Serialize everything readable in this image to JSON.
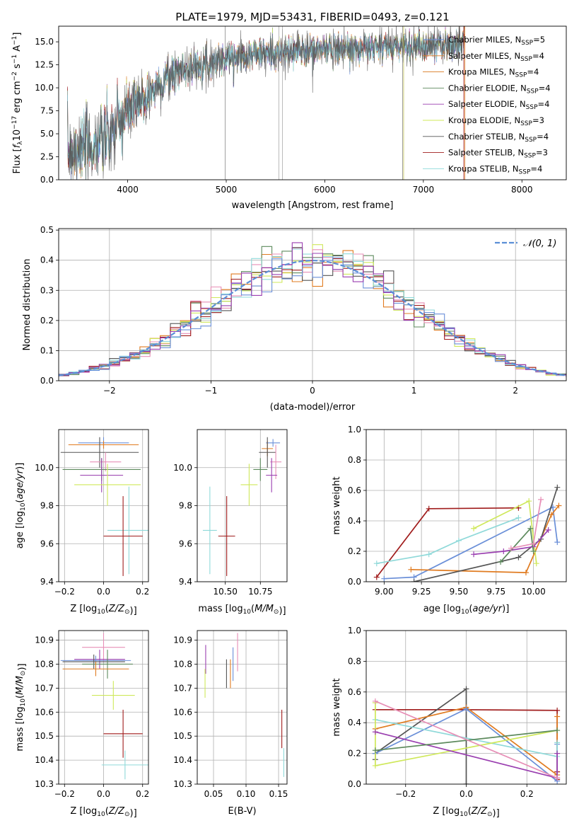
{
  "colors": {
    "chabrier_miles": "#6a8fd8",
    "salpeter_miles": "#e07b20",
    "kroupa_miles": "#d9781f",
    "chabrier_elodie": "#5d8a5d",
    "salpeter_elodie": "#9a3fb0",
    "kroupa_elodie": "#cfe85a",
    "chabrier_stelib": "#555555",
    "salpeter_stelib": "#a01c1c",
    "kroupa_stelib": "#8fd9d9",
    "pink": "#e78fb7",
    "gaussian": "#5b8fd6",
    "grid": "#b0b0b0"
  },
  "chart_data": [
    {
      "type": "line",
      "title": "PLATE=1979, MJD=53431, FIBERID=0493, z=0.121",
      "xlabel": "wavelength [Angstrom, rest frame]",
      "ylabel": "Flux [fλ10⁻¹⁷ erg cm⁻² s⁻¹ A⁻¹]",
      "xlim": [
        3300,
        8450
      ],
      "ylim": [
        0,
        16.7
      ],
      "xticks": [
        4000,
        5000,
        6000,
        7000,
        8000
      ],
      "yticks": [
        0.0,
        2.5,
        5.0,
        7.5,
        10.0,
        12.5,
        15.0
      ],
      "legend_position": "top-right",
      "series": [
        {
          "name": "Chabrier MILES, NSSP=5",
          "name_text": "Chabrier MILES, N",
          "sub": "SSP",
          "suffix": "=5"
        },
        {
          "name": "Salpeter MILES, NSSP=4",
          "name_text": "Salpeter MILES, N",
          "sub": "SSP",
          "suffix": "=4"
        },
        {
          "name": "Kroupa MILES, NSSP=4",
          "name_text": "Kroupa MILES, N",
          "sub": "SSP",
          "suffix": "=4"
        },
        {
          "name": "Chabrier ELODIE, NSSP=4",
          "name_text": "Chabrier ELODIE, N",
          "sub": "SSP",
          "suffix": "=4"
        },
        {
          "name": "Salpeter ELODIE, NSSP=4",
          "name_text": "Salpeter ELODIE, N",
          "sub": "SSP",
          "suffix": "=4"
        },
        {
          "name": "Kroupa ELODIE, NSSP=3",
          "name_text": "Kroupa ELODIE, N",
          "sub": "SSP",
          "suffix": "=3"
        },
        {
          "name": "Chabrier STELIB, NSSP=4",
          "name_text": "Chabrier STELIB, N",
          "sub": "SSP",
          "suffix": "=4"
        },
        {
          "name": "Salpeter STELIB, NSSP=3",
          "name_text": "Salpeter STELIB, N",
          "sub": "SSP",
          "suffix": "=3"
        },
        {
          "name": "Kroupa STELIB, NSSP=4",
          "name_text": "Kroupa STELIB, N",
          "sub": "SSP",
          "suffix": "=4"
        }
      ],
      "continuum": {
        "x": [
          3400,
          3500,
          3600,
          3700,
          3800,
          3900,
          4000,
          4100,
          4200,
          4300,
          4400,
          4500,
          4700,
          5000,
          5200,
          5500,
          5800,
          6000,
          6300,
          6600,
          7000,
          7300,
          7600,
          8000,
          8450
        ],
        "y": [
          3.2,
          3.4,
          3.4,
          3.9,
          4.6,
          5.8,
          7.3,
          8.2,
          9.1,
          10.2,
          11.0,
          11.8,
          12.4,
          13.2,
          13.6,
          13.8,
          14.0,
          14.2,
          14.3,
          14.4,
          14.6,
          14.7,
          14.6,
          14.5,
          14.4
        ]
      },
      "gaps": [
        4990,
        5535,
        5570,
        6800,
        7420,
        6790,
        7410
      ]
    },
    {
      "type": "line",
      "title": "",
      "xlabel": "(data-model)/error",
      "ylabel": "Normed distribution",
      "xlim": [
        -2.5,
        2.5
      ],
      "ylim": [
        0,
        0.505
      ],
      "xticks": [
        -2,
        -1,
        0,
        1,
        2
      ],
      "yticks": [
        0.0,
        0.1,
        0.2,
        0.3,
        0.4,
        0.5
      ],
      "grid": true,
      "legend_position": "top-right",
      "legend": "𝒩(0, 1)",
      "series_type": "step-histogram",
      "bin_width": 0.1
    },
    {
      "type": "scatter",
      "xlabel": "Z [log₁₀(Z/Z☉)]",
      "ylabel": "age  [log₁₀(age/yr)]",
      "xlim": [
        -0.23,
        0.23
      ],
      "ylim": [
        9.4,
        10.2
      ],
      "xticks": [
        -0.2,
        0.0,
        0.2
      ],
      "yticks": [
        9.4,
        9.6,
        9.8,
        10.0
      ],
      "grid": true,
      "errorbars": [
        {
          "series": "chabrier_miles",
          "x": 0.0,
          "y": 10.13,
          "xerr": 0.13,
          "yerr": 0.03
        },
        {
          "series": "salpeter_miles",
          "x": 0.0,
          "y": 10.12,
          "xerr": 0.18,
          "yerr": 0.02
        },
        {
          "series": "chabrier_stelib",
          "x": -0.02,
          "y": 10.08,
          "xerr": 0.2,
          "yerr": 0.08
        },
        {
          "series": "pink",
          "x": 0.01,
          "y": 10.03,
          "xerr": 0.08,
          "yerr": 0.05
        },
        {
          "series": "chabrier_elodie",
          "x": -0.01,
          "y": 9.99,
          "xerr": 0.2,
          "yerr": 0.06
        },
        {
          "series": "salpeter_elodie",
          "x": -0.01,
          "y": 9.96,
          "xerr": 0.11,
          "yerr": 0.09
        },
        {
          "series": "kroupa_elodie",
          "x": 0.02,
          "y": 9.91,
          "xerr": 0.17,
          "yerr": 0.11
        },
        {
          "series": "kroupa_stelib",
          "x": 0.13,
          "y": 9.67,
          "xerr": 0.11,
          "yerr": 0.23
        },
        {
          "series": "salpeter_stelib",
          "x": 0.1,
          "y": 9.64,
          "xerr": 0.1,
          "yerr": 0.21
        }
      ]
    },
    {
      "type": "scatter",
      "xlabel": "mass [log₁₀(M/M☉)]",
      "ylabel": "",
      "xlim": [
        10.3,
        10.94
      ],
      "ylim": [
        9.4,
        10.2
      ],
      "xticks": [
        10.5,
        10.75
      ],
      "yticks": [
        9.4,
        9.6,
        9.8,
        10.0
      ],
      "grid": true,
      "errorbars": [
        {
          "series": "chabrier_miles",
          "x": 10.84,
          "y": 10.13,
          "xerr": 0.05,
          "yerr": 0.02
        },
        {
          "series": "salpeter_miles",
          "x": 10.8,
          "y": 10.1,
          "xerr": 0.04,
          "yerr": 0.04
        },
        {
          "series": "chabrier_stelib",
          "x": 10.8,
          "y": 10.08,
          "xerr": 0.06,
          "yerr": 0.08
        },
        {
          "series": "pink",
          "x": 10.86,
          "y": 10.03,
          "xerr": 0.04,
          "yerr": 0.09
        },
        {
          "series": "chabrier_elodie",
          "x": 10.75,
          "y": 9.99,
          "xerr": 0.05,
          "yerr": 0.06
        },
        {
          "series": "salpeter_elodie",
          "x": 10.83,
          "y": 9.96,
          "xerr": 0.04,
          "yerr": 0.09
        },
        {
          "series": "kroupa_elodie",
          "x": 10.67,
          "y": 9.91,
          "xerr": 0.06,
          "yerr": 0.11
        },
        {
          "series": "kroupa_stelib",
          "x": 10.39,
          "y": 9.67,
          "xerr": 0.05,
          "yerr": 0.23
        },
        {
          "series": "salpeter_stelib",
          "x": 10.51,
          "y": 9.64,
          "xerr": 0.06,
          "yerr": 0.21
        }
      ]
    },
    {
      "type": "line",
      "xlabel": "age  [log₁₀(age/yr)]",
      "ylabel": "mass weight",
      "xlim": [
        8.88,
        10.22
      ],
      "ylim": [
        0,
        1.0
      ],
      "xticks": [
        9.0,
        9.25,
        9.5,
        9.75,
        10.0
      ],
      "yticks": [
        0.0,
        0.2,
        0.4,
        0.6,
        0.8,
        1.0
      ],
      "grid": true,
      "series": [
        {
          "series": "salpeter_stelib",
          "x": [
            8.95,
            9.3,
            9.9
          ],
          "y": [
            0.03,
            0.48,
            0.485
          ]
        },
        {
          "series": "kroupa_stelib",
          "x": [
            8.95,
            9.3,
            9.5,
            9.9
          ],
          "y": [
            0.12,
            0.18,
            0.27,
            0.42
          ]
        },
        {
          "series": "chabrier_miles",
          "x": [
            9.0,
            9.2,
            10.13,
            10.16
          ],
          "y": [
            0.02,
            0.03,
            0.49,
            0.26
          ]
        },
        {
          "series": "salpeter_miles",
          "x": [
            9.18,
            9.95,
            10.12,
            10.17
          ],
          "y": [
            0.08,
            0.06,
            0.44,
            0.5
          ]
        },
        {
          "series": "chabrier_stelib",
          "x": [
            9.2,
            9.9,
            10.05,
            10.16
          ],
          "y": [
            0.0,
            0.16,
            0.28,
            0.62
          ]
        },
        {
          "series": "kroupa_elodie",
          "x": [
            9.6,
            9.97,
            10.02
          ],
          "y": [
            0.35,
            0.53,
            0.12
          ]
        },
        {
          "series": "salpeter_elodie",
          "x": [
            9.6,
            9.8,
            10.0,
            10.1
          ],
          "y": [
            0.18,
            0.2,
            0.23,
            0.34
          ]
        },
        {
          "series": "chabrier_elodie",
          "x": [
            9.78,
            9.98,
            10.0
          ],
          "y": [
            0.13,
            0.35,
            0.2
          ]
        },
        {
          "series": "pink",
          "x": [
            9.85,
            10.0,
            10.05
          ],
          "y": [
            0.22,
            0.25,
            0.54
          ]
        }
      ]
    },
    {
      "type": "scatter",
      "xlabel": "Z [log₁₀(Z/Z☉)]",
      "ylabel": "mass [log₁₀(M/M☉)]",
      "xlim": [
        -0.23,
        0.23
      ],
      "ylim": [
        10.3,
        10.94
      ],
      "xticks": [
        -0.2,
        0.0,
        0.2
      ],
      "yticks": [
        10.3,
        10.4,
        10.5,
        10.6,
        10.7,
        10.8,
        10.9
      ],
      "grid": true,
      "errorbars": [
        {
          "series": "pink",
          "x": 0.0,
          "y": 10.87,
          "xerr": 0.11,
          "yerr": 0.06
        },
        {
          "series": "salpeter_elodie",
          "x": -0.02,
          "y": 10.82,
          "xerr": 0.13,
          "yerr": 0.04
        },
        {
          "series": "chabrier_miles",
          "x": -0.04,
          "y": 10.815,
          "xerr": 0.18,
          "yerr": 0.02
        },
        {
          "series": "chabrier_stelib",
          "x": -0.05,
          "y": 10.81,
          "xerr": 0.16,
          "yerr": 0.03
        },
        {
          "series": "chabrier_elodie",
          "x": 0.02,
          "y": 10.8,
          "xerr": 0.13,
          "yerr": 0.06
        },
        {
          "series": "salpeter_miles",
          "x": -0.04,
          "y": 10.78,
          "xerr": 0.17,
          "yerr": 0.03
        },
        {
          "series": "kroupa_elodie",
          "x": 0.05,
          "y": 10.67,
          "xerr": 0.11,
          "yerr": 0.06
        },
        {
          "series": "salpeter_stelib",
          "x": 0.1,
          "y": 10.51,
          "xerr": 0.1,
          "yerr": 0.1
        },
        {
          "series": "kroupa_stelib",
          "x": 0.11,
          "y": 10.38,
          "xerr": 0.12,
          "yerr": 0.06
        }
      ]
    },
    {
      "type": "scatter",
      "xlabel": "E(B-V)",
      "ylabel": "",
      "xlim": [
        0.025,
        0.163
      ],
      "ylim": [
        10.3,
        10.94
      ],
      "xticks": [
        0.05,
        0.1,
        0.15
      ],
      "yticks": [
        10.3,
        10.4,
        10.5,
        10.6,
        10.7,
        10.8,
        10.9
      ],
      "grid": true,
      "errorbars": [
        {
          "series": "salpeter_elodie",
          "x": 0.038,
          "y": 10.82,
          "xerr": 0.0,
          "yerr": 0.06
        },
        {
          "series": "kroupa_elodie",
          "x": 0.037,
          "y": 10.72,
          "xerr": 0.0,
          "yerr": 0.06
        },
        {
          "series": "chabrier_stelib",
          "x": 0.07,
          "y": 10.76,
          "xerr": 0.0,
          "yerr": 0.06
        },
        {
          "series": "salpeter_miles",
          "x": 0.076,
          "y": 10.76,
          "xerr": 0.0,
          "yerr": 0.06
        },
        {
          "series": "chabrier_miles",
          "x": 0.08,
          "y": 10.8,
          "xerr": 0.0,
          "yerr": 0.07
        },
        {
          "series": "pink",
          "x": 0.087,
          "y": 10.85,
          "xerr": 0.0,
          "yerr": 0.08
        },
        {
          "series": "salpeter_stelib",
          "x": 0.155,
          "y": 10.53,
          "xerr": 0.0,
          "yerr": 0.08
        },
        {
          "series": "kroupa_stelib",
          "x": 0.158,
          "y": 10.39,
          "xerr": 0.0,
          "yerr": 0.06
        }
      ]
    },
    {
      "type": "line",
      "xlabel": "Z [log₁₀(Z/Z☉)]",
      "ylabel": "mass weight",
      "xlim": [
        -0.33,
        0.33
      ],
      "ylim": [
        0,
        1.0
      ],
      "xticks": [
        -0.2,
        0.0,
        0.2
      ],
      "yticks": [
        0.0,
        0.2,
        0.4,
        0.6,
        0.8,
        1.0
      ],
      "grid": true,
      "series": [
        {
          "series": "salpeter_stelib",
          "x": [
            -0.3,
            0.0,
            0.3,
            0.3,
            0.3
          ],
          "y": [
            0.485,
            0.485,
            0.48,
            0.08,
            0.03
          ]
        },
        {
          "series": "chabrier_stelib",
          "x": [
            -0.3,
            -0.3,
            0.0,
            0.0
          ],
          "y": [
            0.16,
            0.2,
            0.62,
            0.0
          ]
        },
        {
          "series": "salpeter_miles",
          "x": [
            -0.3,
            0.0,
            0.3,
            0.3
          ],
          "y": [
            0.36,
            0.5,
            0.06,
            0.44
          ]
        },
        {
          "series": "chabrier_miles",
          "x": [
            -0.3,
            0.0,
            0.3,
            0.3
          ],
          "y": [
            0.2,
            0.49,
            0.02,
            0.26
          ]
        },
        {
          "series": "kroupa_stelib",
          "x": [
            -0.3,
            0.3,
            0.3
          ],
          "y": [
            0.42,
            0.18,
            0.27
          ]
        },
        {
          "series": "kroupa_elodie",
          "x": [
            -0.3,
            -0.3,
            0.3
          ],
          "y": [
            0.53,
            0.12,
            0.35
          ]
        },
        {
          "series": "salpeter_elodie",
          "x": [
            -0.3,
            0.3,
            0.3
          ],
          "y": [
            0.34,
            0.04,
            0.2
          ]
        },
        {
          "series": "chabrier_elodie",
          "x": [
            -0.3,
            0.3
          ],
          "y": [
            0.22,
            0.35
          ]
        },
        {
          "series": "pink",
          "x": [
            -0.3,
            0.3
          ],
          "y": [
            0.54,
            0.04
          ]
        }
      ]
    }
  ]
}
